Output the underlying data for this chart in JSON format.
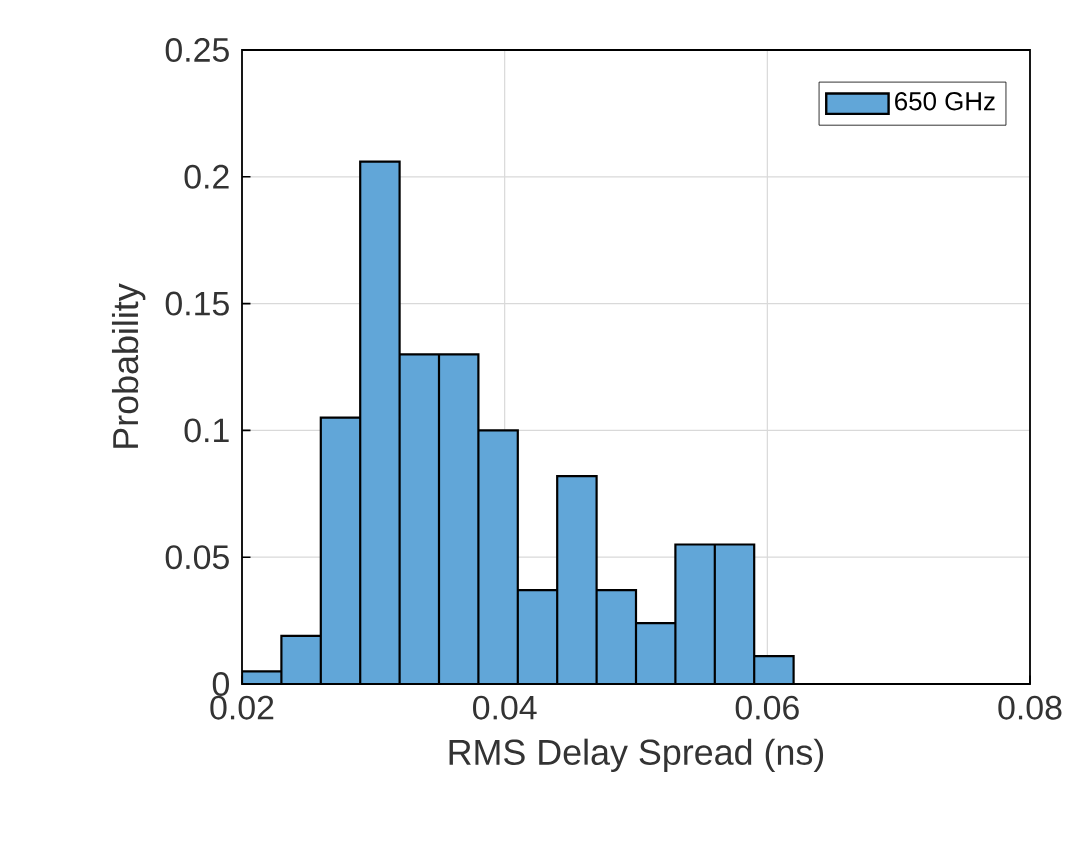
{
  "chart_data": {
    "type": "histogram",
    "xlabel": "RMS Delay Spread (ns)",
    "ylabel": "Probability",
    "bins": [
      0.02,
      0.023,
      0.026,
      0.029,
      0.032,
      0.035,
      0.038,
      0.041,
      0.044,
      0.047,
      0.05,
      0.053,
      0.056,
      0.059,
      0.062
    ],
    "series": [
      {
        "name": "650 GHz",
        "color": "#61a6d8",
        "values": [
          0.005,
          0.019,
          0.105,
          0.206,
          0.13,
          0.13,
          0.1,
          0.037,
          0.082,
          0.037,
          0.024,
          0.055,
          0.055,
          0.011
        ]
      }
    ],
    "xlim": [
      0.02,
      0.08
    ],
    "ylim": [
      0,
      0.25
    ],
    "xticks": [
      0.02,
      0.04,
      0.06,
      0.08
    ],
    "yticks": [
      0,
      0.05,
      0.1,
      0.15,
      0.2,
      0.25
    ],
    "grid": true,
    "legend": "top right"
  }
}
